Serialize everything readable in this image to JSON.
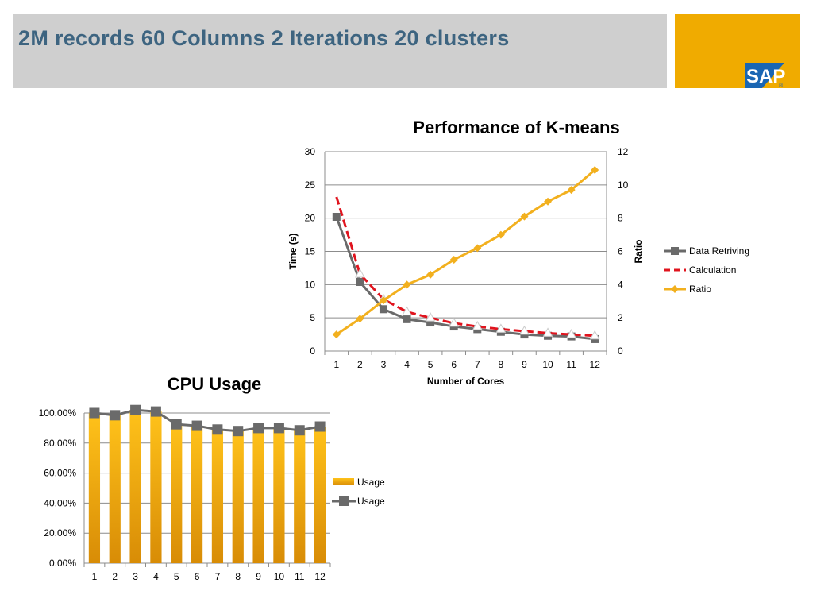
{
  "slide": {
    "title": "2M records 60 Columns 2 Iterations 20 clusters",
    "logo_text": "SAP",
    "logo_mark": "®"
  },
  "colors": {
    "title_bar": "#cfcfcf",
    "title_text": "#3d6480",
    "logo_bg": "#f0ab00",
    "logo_blue": "#1a66b3",
    "data_retriving": "#6a6a6a",
    "calculation": "#e0141e",
    "ratio": "#f2b01e",
    "usage_bar": "#f2b01e",
    "usage_line": "#6a6a6a",
    "grid": "#8c8c8c"
  },
  "chart_data": [
    {
      "type": "line",
      "title": "Performance of K-means",
      "xlabel": "Number of Cores",
      "ylabel": "Time (s)",
      "y2label": "Ratio",
      "x": [
        1,
        2,
        3,
        4,
        5,
        6,
        7,
        8,
        9,
        10,
        11,
        12
      ],
      "ylim": [
        0,
        30
      ],
      "yticks": [
        0,
        5,
        10,
        15,
        20,
        25,
        30
      ],
      "y2lim": [
        0,
        12
      ],
      "y2ticks": [
        0,
        2,
        4,
        6,
        8,
        10,
        12
      ],
      "grid": true,
      "legend": "right",
      "series": [
        {
          "name": "Data Retriving",
          "axis": "left",
          "marker": "square",
          "style": "solid",
          "values": [
            20.2,
            10.4,
            6.3,
            4.8,
            4.3,
            3.7,
            3.3,
            2.9,
            2.5,
            2.3,
            2.2,
            1.8
          ]
        },
        {
          "name": "Calculation",
          "axis": "left",
          "marker": "triangle",
          "style": "dashed",
          "values": [
            23.2,
            11.6,
            7.8,
            5.9,
            5.0,
            4.2,
            3.7,
            3.3,
            3.0,
            2.7,
            2.5,
            2.3
          ]
        },
        {
          "name": "Ratio",
          "axis": "right",
          "marker": "diamond",
          "style": "solid",
          "values": [
            1.0,
            1.95,
            3.05,
            4.0,
            4.6,
            5.5,
            6.2,
            7.0,
            8.1,
            9.0,
            9.7,
            10.9
          ]
        }
      ]
    },
    {
      "type": "bar",
      "title": "CPU Usage",
      "categories": [
        "1",
        "2",
        "3",
        "4",
        "5",
        "6",
        "7",
        "8",
        "9",
        "10",
        "11",
        "12"
      ],
      "ylim": [
        0,
        1.0
      ],
      "yticks": [
        "0.00%",
        "20.00%",
        "40.00%",
        "60.00%",
        "80.00%",
        "100.00%"
      ],
      "grid": true,
      "legend": "right",
      "series": [
        {
          "name": "Usage",
          "kind": "bar",
          "values": [
            1.0,
            0.985,
            1.02,
            1.01,
            0.925,
            0.915,
            0.89,
            0.88,
            0.9,
            0.9,
            0.885,
            0.91
          ]
        },
        {
          "name": "Usage",
          "kind": "line",
          "marker": "square",
          "values": [
            1.0,
            0.985,
            1.02,
            1.01,
            0.925,
            0.915,
            0.89,
            0.88,
            0.9,
            0.9,
            0.885,
            0.91
          ]
        }
      ]
    }
  ]
}
